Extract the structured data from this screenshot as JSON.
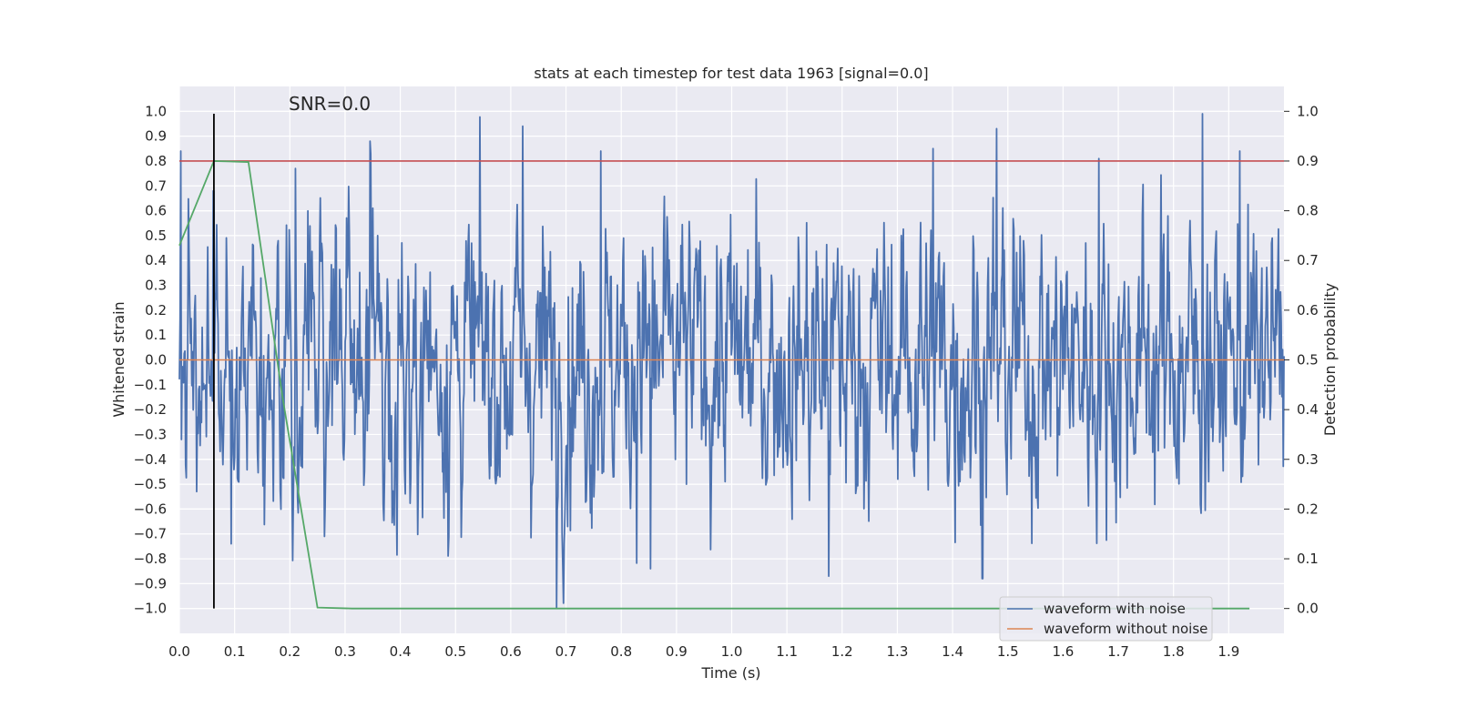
{
  "chart_data": {
    "type": "line",
    "title": "stats at each timestep for test data 1963 [signal=0.0]",
    "xlabel": "Time (s)",
    "ylabel": "Whitened strain",
    "y2label": "Detection probability",
    "xlim": [
      0.0,
      2.0
    ],
    "ylim": [
      -1.1,
      1.1
    ],
    "y2lim": [
      -0.05,
      1.05
    ],
    "x_ticks": [
      0.0,
      0.1,
      0.2,
      0.3,
      0.4,
      0.5,
      0.6,
      0.7,
      0.8,
      0.9,
      1.0,
      1.1,
      1.2,
      1.3,
      1.4,
      1.5,
      1.6,
      1.7,
      1.8,
      1.9
    ],
    "x_tick_labels": [
      "0.0",
      "0.1",
      "0.2",
      "0.3",
      "0.4",
      "0.5",
      "0.6",
      "0.7",
      "0.8",
      "0.9",
      "1.0",
      "1.1",
      "1.2",
      "1.3",
      "1.4",
      "1.5",
      "1.6",
      "1.7",
      "1.8",
      "1.9"
    ],
    "y_ticks": [
      -1.0,
      -0.9,
      -0.8,
      -0.7,
      -0.6,
      -0.5,
      -0.4,
      -0.3,
      -0.2,
      -0.1,
      0.0,
      0.1,
      0.2,
      0.3,
      0.4,
      0.5,
      0.6,
      0.7,
      0.8,
      0.9,
      1.0
    ],
    "y_tick_labels": [
      "−1.0",
      "−0.9",
      "−0.8",
      "−0.7",
      "−0.6",
      "−0.5",
      "−0.4",
      "−0.3",
      "−0.2",
      "−0.1",
      "0.0",
      "0.1",
      "0.2",
      "0.3",
      "0.4",
      "0.5",
      "0.6",
      "0.7",
      "0.8",
      "0.9",
      "1.0"
    ],
    "y2_ticks": [
      0.0,
      0.1,
      0.2,
      0.3,
      0.4,
      0.5,
      0.6,
      0.7,
      0.8,
      0.9,
      1.0
    ],
    "y2_tick_labels": [
      "0.0",
      "0.1",
      "0.2",
      "0.3",
      "0.4",
      "0.5",
      "0.6",
      "0.7",
      "0.8",
      "0.9",
      "1.0"
    ],
    "annotation": "SNR=0.0",
    "grid": true,
    "legend_position": "lower-right",
    "colors": {
      "background": "#eaeaf2",
      "grid": "#ffffff",
      "noisy": "#4c72b0",
      "clean": "#dd8452",
      "probability": "#55a868",
      "threshold": "#c44e52",
      "marker": "#000000"
    },
    "series": [
      {
        "name": "waveform with noise",
        "axis": "left",
        "style": "dense-noise",
        "sample_count": 1600,
        "x_range": [
          0.0,
          2.0
        ],
        "envelope_peaks": [
          {
            "x": 0.003,
            "y": 0.84
          },
          {
            "x": 0.062,
            "y": 0.68
          },
          {
            "x": 0.094,
            "y": -0.74
          },
          {
            "x": 0.21,
            "y": 0.77
          },
          {
            "x": 0.345,
            "y": 0.88
          },
          {
            "x": 0.622,
            "y": 0.94
          },
          {
            "x": 0.683,
            "y": -1.0
          },
          {
            "x": 0.763,
            "y": 0.84
          },
          {
            "x": 0.853,
            "y": -0.84
          },
          {
            "x": 1.176,
            "y": -0.87
          },
          {
            "x": 1.365,
            "y": 0.85
          },
          {
            "x": 1.454,
            "y": -0.88
          },
          {
            "x": 1.48,
            "y": 0.93
          },
          {
            "x": 1.665,
            "y": 0.81
          },
          {
            "x": 1.852,
            "y": 0.99
          },
          {
            "x": 1.92,
            "y": 0.84
          }
        ]
      },
      {
        "name": "waveform without noise",
        "axis": "left",
        "x": [
          0.0,
          2.0
        ],
        "y": [
          0.0,
          0.0
        ]
      },
      {
        "axis": "right",
        "x": [
          0.0,
          0.0625,
          0.125,
          0.1875,
          0.25,
          0.3125,
          0.375,
          0.4375,
          0.5,
          1.0,
          1.5,
          1.9375
        ],
        "y": [
          0.73,
          0.9,
          0.898,
          0.42,
          0.002,
          0.0,
          0.0,
          0.0,
          0.0,
          0.0,
          0.0,
          0.0
        ]
      },
      {
        "axis": "right",
        "style": "horizontal-line",
        "x": [
          0.0,
          2.0
        ],
        "y": [
          0.9,
          0.9
        ]
      },
      {
        "axis": "left",
        "style": "vertical-line",
        "x": [
          0.0625,
          0.0625
        ],
        "y": [
          -1.0,
          0.99
        ]
      }
    ],
    "legend": [
      "waveform with noise",
      "waveform without noise"
    ]
  }
}
